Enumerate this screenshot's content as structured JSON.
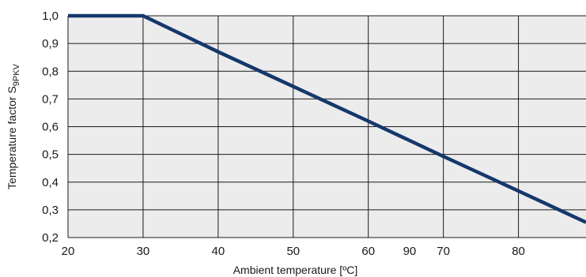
{
  "chart_data": {
    "type": "line",
    "xlabel": "Ambient temperature [ºC]",
    "ylabel_main": "Temperature factor S",
    "ylabel_sub": "9PKV",
    "xlim": [
      20,
      89
    ],
    "ylim": [
      0.2,
      1.0
    ],
    "grid": true,
    "x_ticks": [
      20,
      30,
      40,
      50,
      60,
      70,
      80
    ],
    "x_tick_labels": [
      "20",
      "30",
      "40",
      "50",
      "60",
      "70",
      "80"
    ],
    "extra_x_label": {
      "text": "90",
      "x": 65.5
    },
    "y_ticks": [
      0.2,
      0.3,
      0.4,
      0.5,
      0.6,
      0.7,
      0.8,
      0.9,
      1.0
    ],
    "y_tick_labels": [
      "0,2",
      "0,3",
      "0,4",
      "0,5",
      "0,6",
      "0,7",
      "0,8",
      "0,9",
      "1,0"
    ],
    "series": [
      {
        "color": "#15386b",
        "x": [
          20,
          30,
          40,
          50,
          60,
          70,
          80,
          89
        ],
        "y": [
          1.0,
          1.0,
          0.87,
          0.745,
          0.62,
          0.493,
          0.368,
          0.255
        ]
      }
    ],
    "colors": {
      "plot_bg": "#ececed",
      "grid": "#1a1a1a",
      "line": "#15386b"
    }
  }
}
